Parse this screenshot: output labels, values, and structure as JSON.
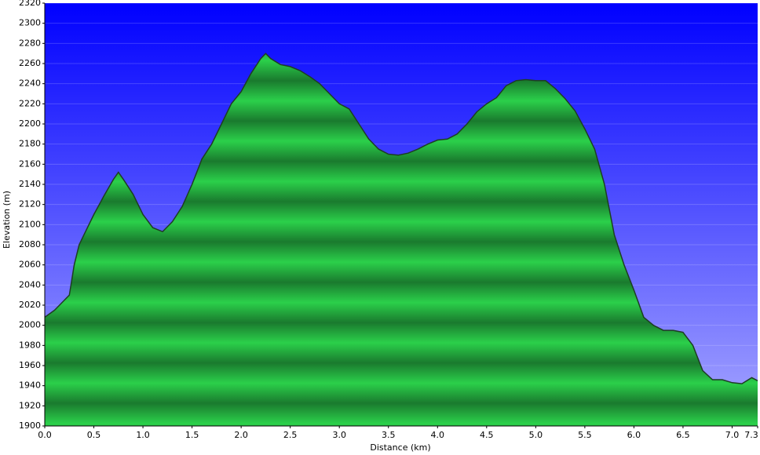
{
  "chart_data": {
    "type": "area",
    "x_label": "Distance   (km)",
    "y_label": "Elevation (m)",
    "color": "#1fa33c",
    "background_top": "#0000ff",
    "background_bottom": "#a8a8ff",
    "grid": true,
    "xlim": [
      0,
      7.26
    ],
    "ylim": [
      1900,
      2320
    ],
    "xticks": [
      {
        "value": 0,
        "label": "0.0"
      },
      0.5,
      {
        "value": 1,
        "label": "1.0"
      },
      1.5,
      {
        "value": 2,
        "label": "2.0"
      },
      2.5,
      {
        "value": 3,
        "label": "3.0"
      },
      3.5,
      {
        "value": 4,
        "label": "4.0"
      },
      4.5,
      {
        "value": 5,
        "label": "5.0"
      },
      5.5,
      {
        "value": 6,
        "label": "6.0"
      },
      6.5,
      {
        "value": 7,
        "label": "7.0"
      },
      {
        "value": 7.26,
        "label": "7.3"
      }
    ],
    "yticks": [
      1900,
      1920,
      1940,
      1960,
      1980,
      2000,
      2020,
      2040,
      2060,
      2080,
      2100,
      2120,
      2140,
      2160,
      2180,
      2200,
      2220,
      2240,
      2260,
      2280,
      2300,
      2320
    ],
    "x": [
      0,
      0.1,
      0.2,
      0.25,
      0.3,
      0.35,
      0.4,
      0.5,
      0.6,
      0.7,
      0.75,
      0.8,
      0.9,
      1.0,
      1.1,
      1.2,
      1.3,
      1.4,
      1.5,
      1.6,
      1.7,
      1.8,
      1.9,
      2.0,
      2.1,
      2.2,
      2.25,
      2.3,
      2.4,
      2.5,
      2.6,
      2.7,
      2.8,
      2.9,
      3.0,
      3.1,
      3.2,
      3.3,
      3.4,
      3.5,
      3.6,
      3.7,
      3.8,
      3.9,
      4.0,
      4.1,
      4.2,
      4.3,
      4.4,
      4.5,
      4.6,
      4.7,
      4.8,
      4.9,
      5.0,
      5.1,
      5.2,
      5.3,
      5.4,
      5.5,
      5.6,
      5.7,
      5.8,
      5.9,
      6.0,
      6.1,
      6.2,
      6.3,
      6.4,
      6.5,
      6.6,
      6.7,
      6.8,
      6.9,
      7.0,
      7.1,
      7.2,
      7.26
    ],
    "values": [
      2008,
      2015,
      2025,
      2030,
      2060,
      2080,
      2090,
      2110,
      2128,
      2145,
      2152,
      2145,
      2130,
      2110,
      2097,
      2093,
      2103,
      2118,
      2140,
      2165,
      2180,
      2200,
      2220,
      2232,
      2250,
      2265,
      2270,
      2265,
      2259,
      2257,
      2253,
      2247,
      2240,
      2230,
      2220,
      2215,
      2200,
      2185,
      2175,
      2170,
      2169,
      2171,
      2175,
      2180,
      2184,
      2185,
      2190,
      2200,
      2212,
      2220,
      2226,
      2238,
      2243,
      2244,
      2243,
      2243,
      2235,
      2225,
      2213,
      2195,
      2175,
      2140,
      2090,
      2060,
      2035,
      2008,
      2000,
      1995,
      1995,
      1993,
      1980,
      1955,
      1946,
      1946,
      1943,
      1942,
      1948,
      1945
    ]
  }
}
